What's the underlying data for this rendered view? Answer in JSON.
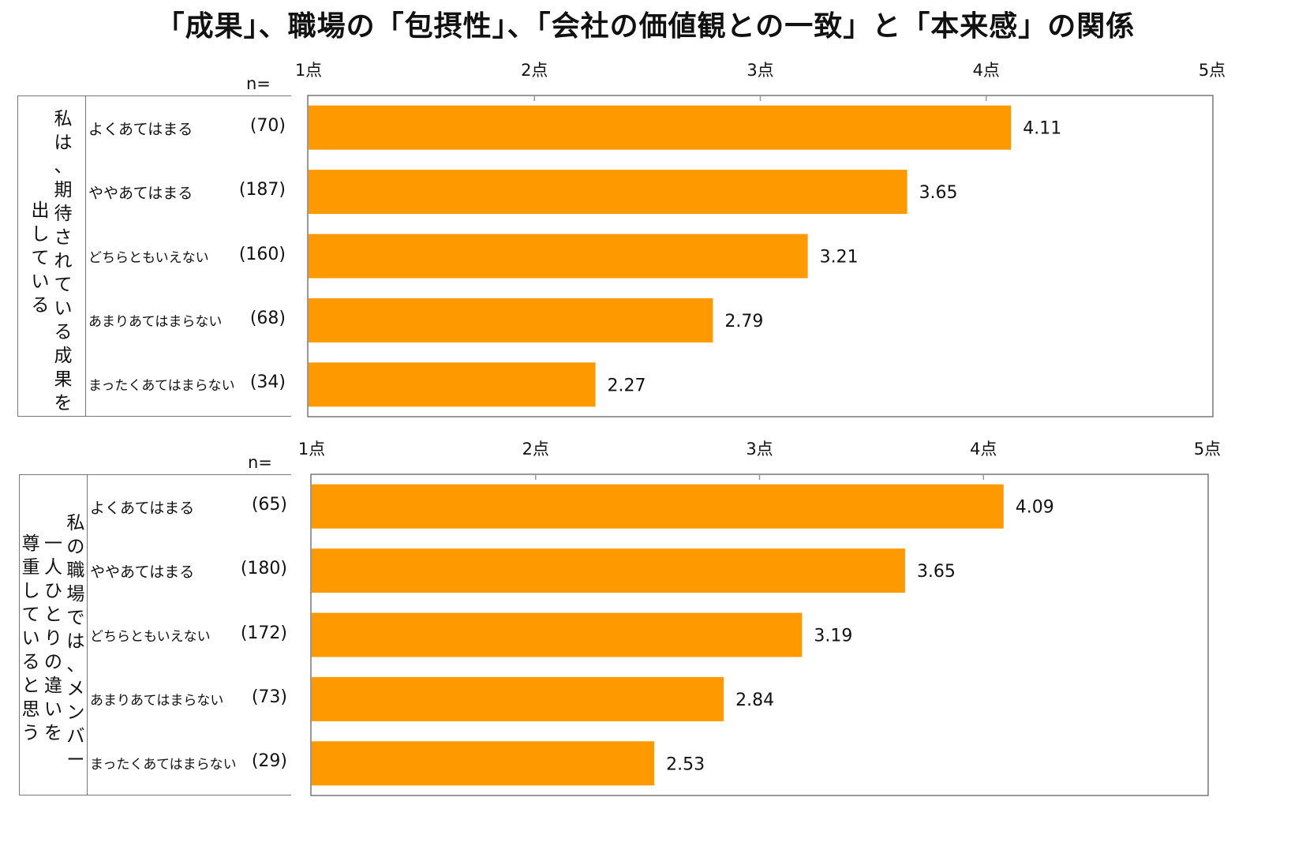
{
  "title": "「成果」、職場の「包摂性」、「会社の価値観との一致」と「本来感」の関係",
  "n_label": "n=",
  "colors": {
    "bar": "#FF9900",
    "frame": "#777777",
    "tick": "#999999"
  },
  "chart_data": [
    {
      "type": "bar",
      "orientation": "horizontal",
      "group_label": "私は、期待されている成果を出している",
      "group_label_columns": [
        "私は、期待されている成果を",
        "出している"
      ],
      "xlim": [
        1,
        5
      ],
      "ticks": [
        1,
        2,
        3,
        4,
        5
      ],
      "tick_labels": [
        "1点",
        "2点",
        "3点",
        "4点",
        "5点"
      ],
      "categories": [
        "よくあてはまる",
        "ややあてはまる",
        "どちらともいえない",
        "あまりあてはまらない",
        "まったくあてはまらない"
      ],
      "counts": [
        "(70)",
        "(187)",
        "(160)",
        "(68)",
        "(34)"
      ],
      "values": [
        4.11,
        3.65,
        3.21,
        2.79,
        2.27
      ],
      "value_labels": [
        "4.11",
        "3.65",
        "3.21",
        "2.79",
        "2.27"
      ]
    },
    {
      "type": "bar",
      "orientation": "horizontal",
      "group_label": "私の職場では、メンバー一人ひとりの違いを尊重していると思う",
      "group_label_columns": [
        "私の職場では、メンバー",
        "一人ひとりの違いを",
        "尊重していると思う"
      ],
      "xlim": [
        1,
        5
      ],
      "ticks": [
        1,
        2,
        3,
        4,
        5
      ],
      "tick_labels": [
        "1点",
        "2点",
        "3点",
        "4点",
        "5点"
      ],
      "categories": [
        "よくあてはまる",
        "ややあてはまる",
        "どちらともいえない",
        "あまりあてはまらない",
        "まったくあてはまらない"
      ],
      "counts": [
        "(65)",
        "(180)",
        "(172)",
        "(73)",
        "(29)"
      ],
      "values": [
        4.09,
        3.65,
        3.19,
        2.84,
        2.53
      ],
      "value_labels": [
        "4.09",
        "3.65",
        "3.19",
        "2.84",
        "2.53"
      ]
    }
  ]
}
